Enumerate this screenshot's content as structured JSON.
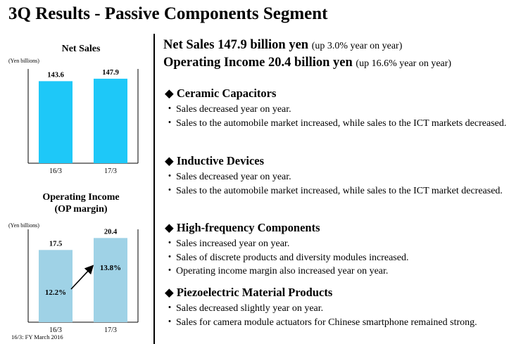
{
  "title": "3Q Results - Passive Components Segment",
  "footnote": "16/3: FY March 2016",
  "headlines": [
    {
      "main": "Net Sales  147.9 billion yen",
      "sub": "(up 3.0% year on year)"
    },
    {
      "main": "Operating Income 20.4 billion yen",
      "sub": "(up 16.6% year on year)"
    }
  ],
  "sections": [
    {
      "title": "Ceramic Capacitors",
      "bullets": [
        "Sales decreased year on year.",
        "Sales to the automobile market increased, while sales to the ICT markets decreased."
      ]
    },
    {
      "title": "Inductive Devices",
      "bullets": [
        "Sales decreased year on year.",
        "Sales to the automobile market increased, while sales to the ICT market decreased."
      ]
    },
    {
      "title": "High-frequency Components",
      "bullets": [
        "Sales increased year on year.",
        "Sales of discrete products and diversity modules increased.",
        "Operating income margin also increased year on year."
      ]
    },
    {
      "title": "Piezoelectric Material Products",
      "bullets": [
        "Sales decreased slightly year on year.",
        "Sales for camera module actuators for Chinese smartphone remained strong."
      ]
    }
  ],
  "chart_data": [
    {
      "type": "bar",
      "title": "Net Sales",
      "ylabel": "(Yen billions)",
      "categories": [
        "16/3",
        "17/3"
      ],
      "values": [
        143.6,
        147.9
      ],
      "value_labels": [
        "143.6",
        "147.9"
      ],
      "ylim": [
        0,
        165
      ],
      "grid": false,
      "colors": {
        "bar": "#1ec8f8"
      }
    },
    {
      "type": "bar",
      "title": "Operating Income",
      "subtitle": "(OP margin)",
      "ylabel": "(Yen billions)",
      "categories": [
        "16/3",
        "17/3"
      ],
      "values": [
        17.5,
        20.4
      ],
      "value_labels": [
        "17.5",
        "20.4"
      ],
      "margins": [
        "12.2%",
        "13.8%"
      ],
      "ylim": [
        0,
        22.5
      ],
      "grid": false,
      "colors": {
        "bar": "#9fd2e6"
      }
    }
  ]
}
